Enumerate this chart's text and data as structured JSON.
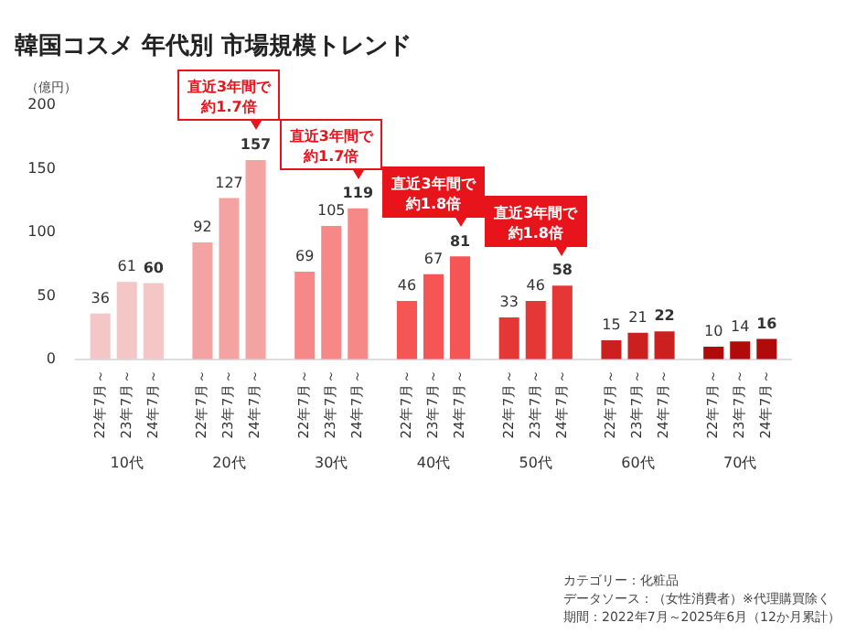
{
  "chart_data": {
    "type": "bar",
    "title": "韓国コスメ 年代別 市場規模トレンド",
    "ylabel": "（億円）",
    "categories": [
      "10代",
      "20代",
      "30代",
      "40代",
      "50代",
      "60代",
      "70代"
    ],
    "series": [
      {
        "name": "22年7月～",
        "values": [
          36,
          92,
          69,
          46,
          33,
          15,
          10
        ],
        "colors": [
          "#f4c6c6",
          "#f4a3a3",
          "#f78888",
          "#f55555",
          "#e63737",
          "#cc2020",
          "#b00a0a"
        ]
      },
      {
        "name": "23年7月～",
        "values": [
          61,
          127,
          105,
          67,
          46,
          21,
          14
        ],
        "colors": [
          "#f4c6c6",
          "#f4a3a3",
          "#f78888",
          "#f55555",
          "#e63737",
          "#cc2020",
          "#b00a0a"
        ]
      },
      {
        "name": "24年7月～",
        "values": [
          60,
          157,
          119,
          81,
          58,
          22,
          16
        ],
        "colors": [
          "#f4c6c6",
          "#f4a3a3",
          "#f78888",
          "#f55555",
          "#e63737",
          "#cc2020",
          "#b00a0a"
        ]
      }
    ],
    "ylim": [
      0,
      200
    ],
    "yticks": [
      0,
      50,
      100,
      150,
      200
    ],
    "grid": false,
    "legend": false,
    "data_labels": true,
    "annotations": [
      "直近3年間で約1.7倍",
      "直近3年間で約1.7倍",
      "直近3年間で約1.8倍",
      "直近3年間で約1.8倍",
      "カテゴリー：化粧品",
      "データソース：（女性消費者）※代理購買除く",
      "期間：2022年7月～2025年6月（12か月累計）"
    ]
  }
}
